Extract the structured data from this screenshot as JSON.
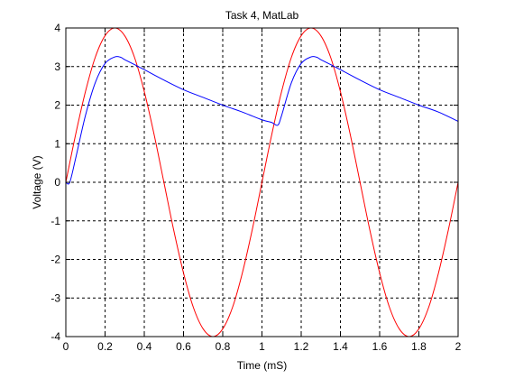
{
  "chart_data": {
    "type": "line",
    "title": "Task 4, MatLab",
    "xlabel": "Time (mS)",
    "ylabel": "Voltage (V)",
    "xlim": [
      0,
      2
    ],
    "ylim": [
      -4,
      4
    ],
    "xticks": [
      0,
      0.2,
      0.4,
      0.6,
      0.8,
      1,
      1.2,
      1.4,
      1.6,
      1.8,
      2
    ],
    "yticks": [
      -4,
      -3,
      -2,
      -1,
      0,
      1,
      2,
      3,
      4
    ],
    "xtick_labels": [
      "0",
      "0.2",
      "0.4",
      "0.6",
      "0.8",
      "1",
      "1.2",
      "1.4",
      "1.6",
      "1.8",
      "2"
    ],
    "ytick_labels": [
      "-4",
      "-3",
      "-2",
      "-1",
      "0",
      "1",
      "2",
      "3",
      "4"
    ],
    "grid": true,
    "grid_style": "dashed",
    "series": [
      {
        "color": "#ff0000",
        "x": [
          0,
          0.05,
          0.1,
          0.15,
          0.2,
          0.25,
          0.3,
          0.35,
          0.4,
          0.45,
          0.5,
          0.55,
          0.6,
          0.65,
          0.7,
          0.75,
          0.8,
          0.85,
          0.9,
          0.95,
          1.0,
          1.05,
          1.1,
          1.15,
          1.2,
          1.25,
          1.3,
          1.35,
          1.4,
          1.45,
          1.5,
          1.55,
          1.6,
          1.65,
          1.7,
          1.75,
          1.8,
          1.85,
          1.9,
          1.95,
          2.0
        ],
        "y": [
          0,
          1.24,
          2.35,
          3.24,
          3.8,
          4.0,
          3.8,
          3.24,
          2.35,
          1.24,
          0,
          -1.24,
          -2.35,
          -3.24,
          -3.8,
          -4.0,
          -3.8,
          -3.24,
          -2.35,
          -1.24,
          0,
          1.24,
          2.35,
          3.24,
          3.8,
          4.0,
          3.8,
          3.24,
          2.35,
          1.24,
          0,
          -1.24,
          -2.35,
          -3.24,
          -3.8,
          -4.0,
          -3.8,
          -3.24,
          -2.35,
          -1.24,
          0
        ]
      },
      {
        "color": "#0000ff",
        "x": [
          0,
          0.02,
          0.05,
          0.1,
          0.15,
          0.2,
          0.25,
          0.28,
          0.3,
          0.35,
          0.4,
          0.5,
          0.6,
          0.7,
          0.8,
          0.9,
          1.0,
          1.05,
          1.08,
          1.1,
          1.15,
          1.2,
          1.25,
          1.28,
          1.3,
          1.35,
          1.4,
          1.5,
          1.6,
          1.7,
          1.8,
          1.9,
          2.0
        ],
        "y": [
          0,
          0,
          0.62,
          1.73,
          2.58,
          3.08,
          3.25,
          3.24,
          3.18,
          3.05,
          2.92,
          2.65,
          2.4,
          2.2,
          2.0,
          1.82,
          1.62,
          1.55,
          1.48,
          1.73,
          2.58,
          3.08,
          3.25,
          3.24,
          3.18,
          3.05,
          2.92,
          2.65,
          2.4,
          2.2,
          2.0,
          1.82,
          1.58
        ]
      }
    ]
  }
}
